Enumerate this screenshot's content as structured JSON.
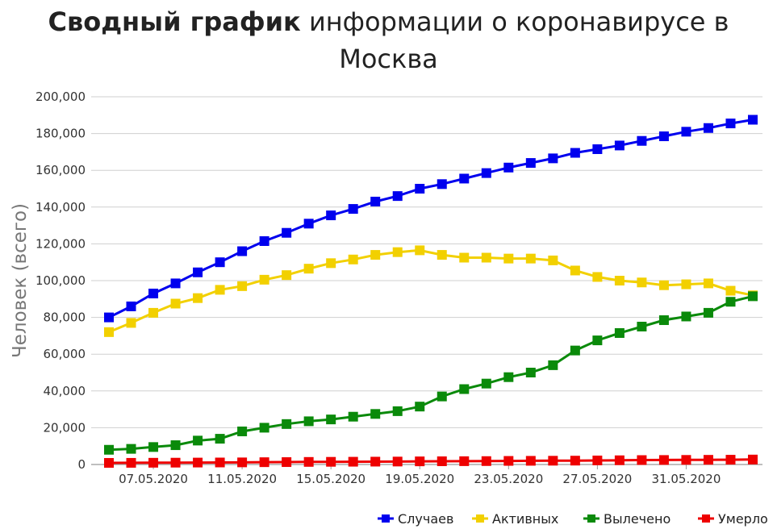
{
  "chart_data": {
    "type": "line",
    "title_bold": "Сводный график",
    "title_rest": "информации о коронавирусе в",
    "title_line2": "Москва",
    "xlabel": "",
    "ylabel": "Человек (всего)",
    "ylim": [
      0,
      200000
    ],
    "yticks": [
      "0",
      "20,000",
      "40,000",
      "60,000",
      "80,000",
      "100,000",
      "120,000",
      "140,000",
      "160,000",
      "180,000",
      "200,000"
    ],
    "xtick_labels": [
      "07.05.2020",
      "11.05.2020",
      "15.05.2020",
      "19.05.2020",
      "23.05.2020",
      "27.05.2020",
      "31.05.2020"
    ],
    "xtick_indices": [
      2,
      6,
      10,
      14,
      18,
      22,
      26
    ],
    "x": [
      "05.05.2020",
      "06.05.2020",
      "07.05.2020",
      "08.05.2020",
      "09.05.2020",
      "10.05.2020",
      "11.05.2020",
      "12.05.2020",
      "13.05.2020",
      "14.05.2020",
      "15.05.2020",
      "16.05.2020",
      "17.05.2020",
      "18.05.2020",
      "19.05.2020",
      "20.05.2020",
      "21.05.2020",
      "22.05.2020",
      "23.05.2020",
      "24.05.2020",
      "25.05.2020",
      "26.05.2020",
      "27.05.2020",
      "28.05.2020",
      "29.05.2020",
      "30.05.2020",
      "31.05.2020",
      "01.06.2020",
      "02.06.2020",
      "03.06.2020"
    ],
    "grid": true,
    "legend_position": "bottom-right",
    "series": [
      {
        "name": "Случаев",
        "color": "#0000ee",
        "values": [
          80000,
          86000,
          93000,
          98500,
          104500,
          110000,
          116000,
          121500,
          126000,
          131000,
          135500,
          139000,
          143000,
          146000,
          150000,
          152500,
          155500,
          158500,
          161500,
          164000,
          166500,
          169500,
          171500,
          173500,
          176000,
          178500,
          181000,
          183000,
          185500,
          187500
        ]
      },
      {
        "name": "Активных",
        "color": "#f2d000",
        "values": [
          72000,
          77000,
          82500,
          87500,
          90500,
          95000,
          97000,
          100500,
          103000,
          106500,
          109500,
          111500,
          114000,
          115500,
          116500,
          114000,
          112500,
          112500,
          112000,
          112000,
          111000,
          105500,
          102000,
          100000,
          99000,
          97500,
          98000,
          98500,
          94500,
          92000
        ]
      },
      {
        "name": "Вылечено",
        "color": "#0a8a0a",
        "values": [
          8000,
          8500,
          9500,
          10500,
          13000,
          14000,
          18000,
          20000,
          22000,
          23500,
          24500,
          26000,
          27500,
          29000,
          31500,
          37000,
          41000,
          44000,
          47500,
          50000,
          54000,
          62000,
          67500,
          71500,
          75000,
          78500,
          80500,
          82500,
          88500,
          91500
        ]
      },
      {
        "name": "Умерло",
        "color": "#ee0000",
        "values": [
          870,
          900,
          950,
          1000,
          1050,
          1100,
          1150,
          1250,
          1300,
          1400,
          1450,
          1500,
          1550,
          1600,
          1700,
          1750,
          1800,
          1850,
          1950,
          2000,
          2050,
          2100,
          2200,
          2300,
          2400,
          2450,
          2500,
          2550,
          2600,
          2700
        ]
      }
    ]
  }
}
